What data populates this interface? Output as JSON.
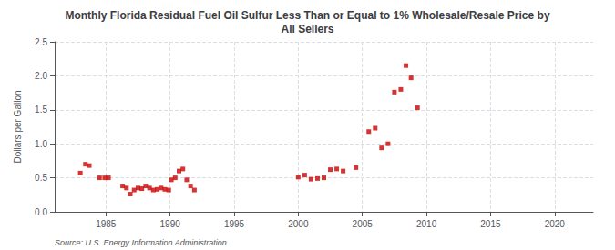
{
  "chart_data": {
    "type": "scatter",
    "title": "Monthly Florida Residual Fuel Oil Sulfur Less Than or Equal to 1% Wholesale/Resale Price by\nAll Sellers",
    "ylabel": "Dollars per Gallon",
    "annotation": "Source: U.S. Energy Information Administration",
    "color": "#cc0000",
    "marker": "square",
    "grid": true,
    "xlim": [
      1981,
      2023
    ],
    "ylim": [
      0.0,
      2.5
    ],
    "xticks": [
      1985,
      1990,
      1995,
      2000,
      2005,
      2010,
      2015,
      2020
    ],
    "yticks": [
      {
        "value": 0.0,
        "label": "0.0"
      },
      0.5,
      {
        "value": 1.0,
        "label": "1.0"
      },
      1.5,
      {
        "value": 2.0,
        "label": "2.0"
      },
      2.5
    ],
    "x": [
      1983.0,
      1983.4,
      1983.7,
      1984.5,
      1984.9,
      1985.2,
      1986.3,
      1986.6,
      1986.9,
      1987.2,
      1987.5,
      1987.8,
      1988.1,
      1988.4,
      1988.7,
      1989.0,
      1989.3,
      1989.6,
      1989.9,
      1990.1,
      1990.4,
      1990.7,
      1991.0,
      1991.3,
      1991.6,
      1991.9,
      2000.0,
      2000.5,
      2001.0,
      2001.5,
      2002.0,
      2002.5,
      2003.0,
      2003.5,
      2004.5,
      2005.5,
      2006.0,
      2006.5,
      2007.0,
      2007.5,
      2008.0,
      2008.4,
      2008.8,
      2009.3
    ],
    "values": [
      0.57,
      0.7,
      0.68,
      0.5,
      0.5,
      0.5,
      0.38,
      0.35,
      0.26,
      0.32,
      0.35,
      0.34,
      0.38,
      0.35,
      0.32,
      0.33,
      0.35,
      0.33,
      0.32,
      0.47,
      0.5,
      0.6,
      0.63,
      0.47,
      0.38,
      0.32,
      0.51,
      0.54,
      0.48,
      0.49,
      0.5,
      0.62,
      0.63,
      0.6,
      0.65,
      1.18,
      1.23,
      0.94,
      1.0,
      1.76,
      1.8,
      2.15,
      1.97,
      1.53
    ]
  }
}
